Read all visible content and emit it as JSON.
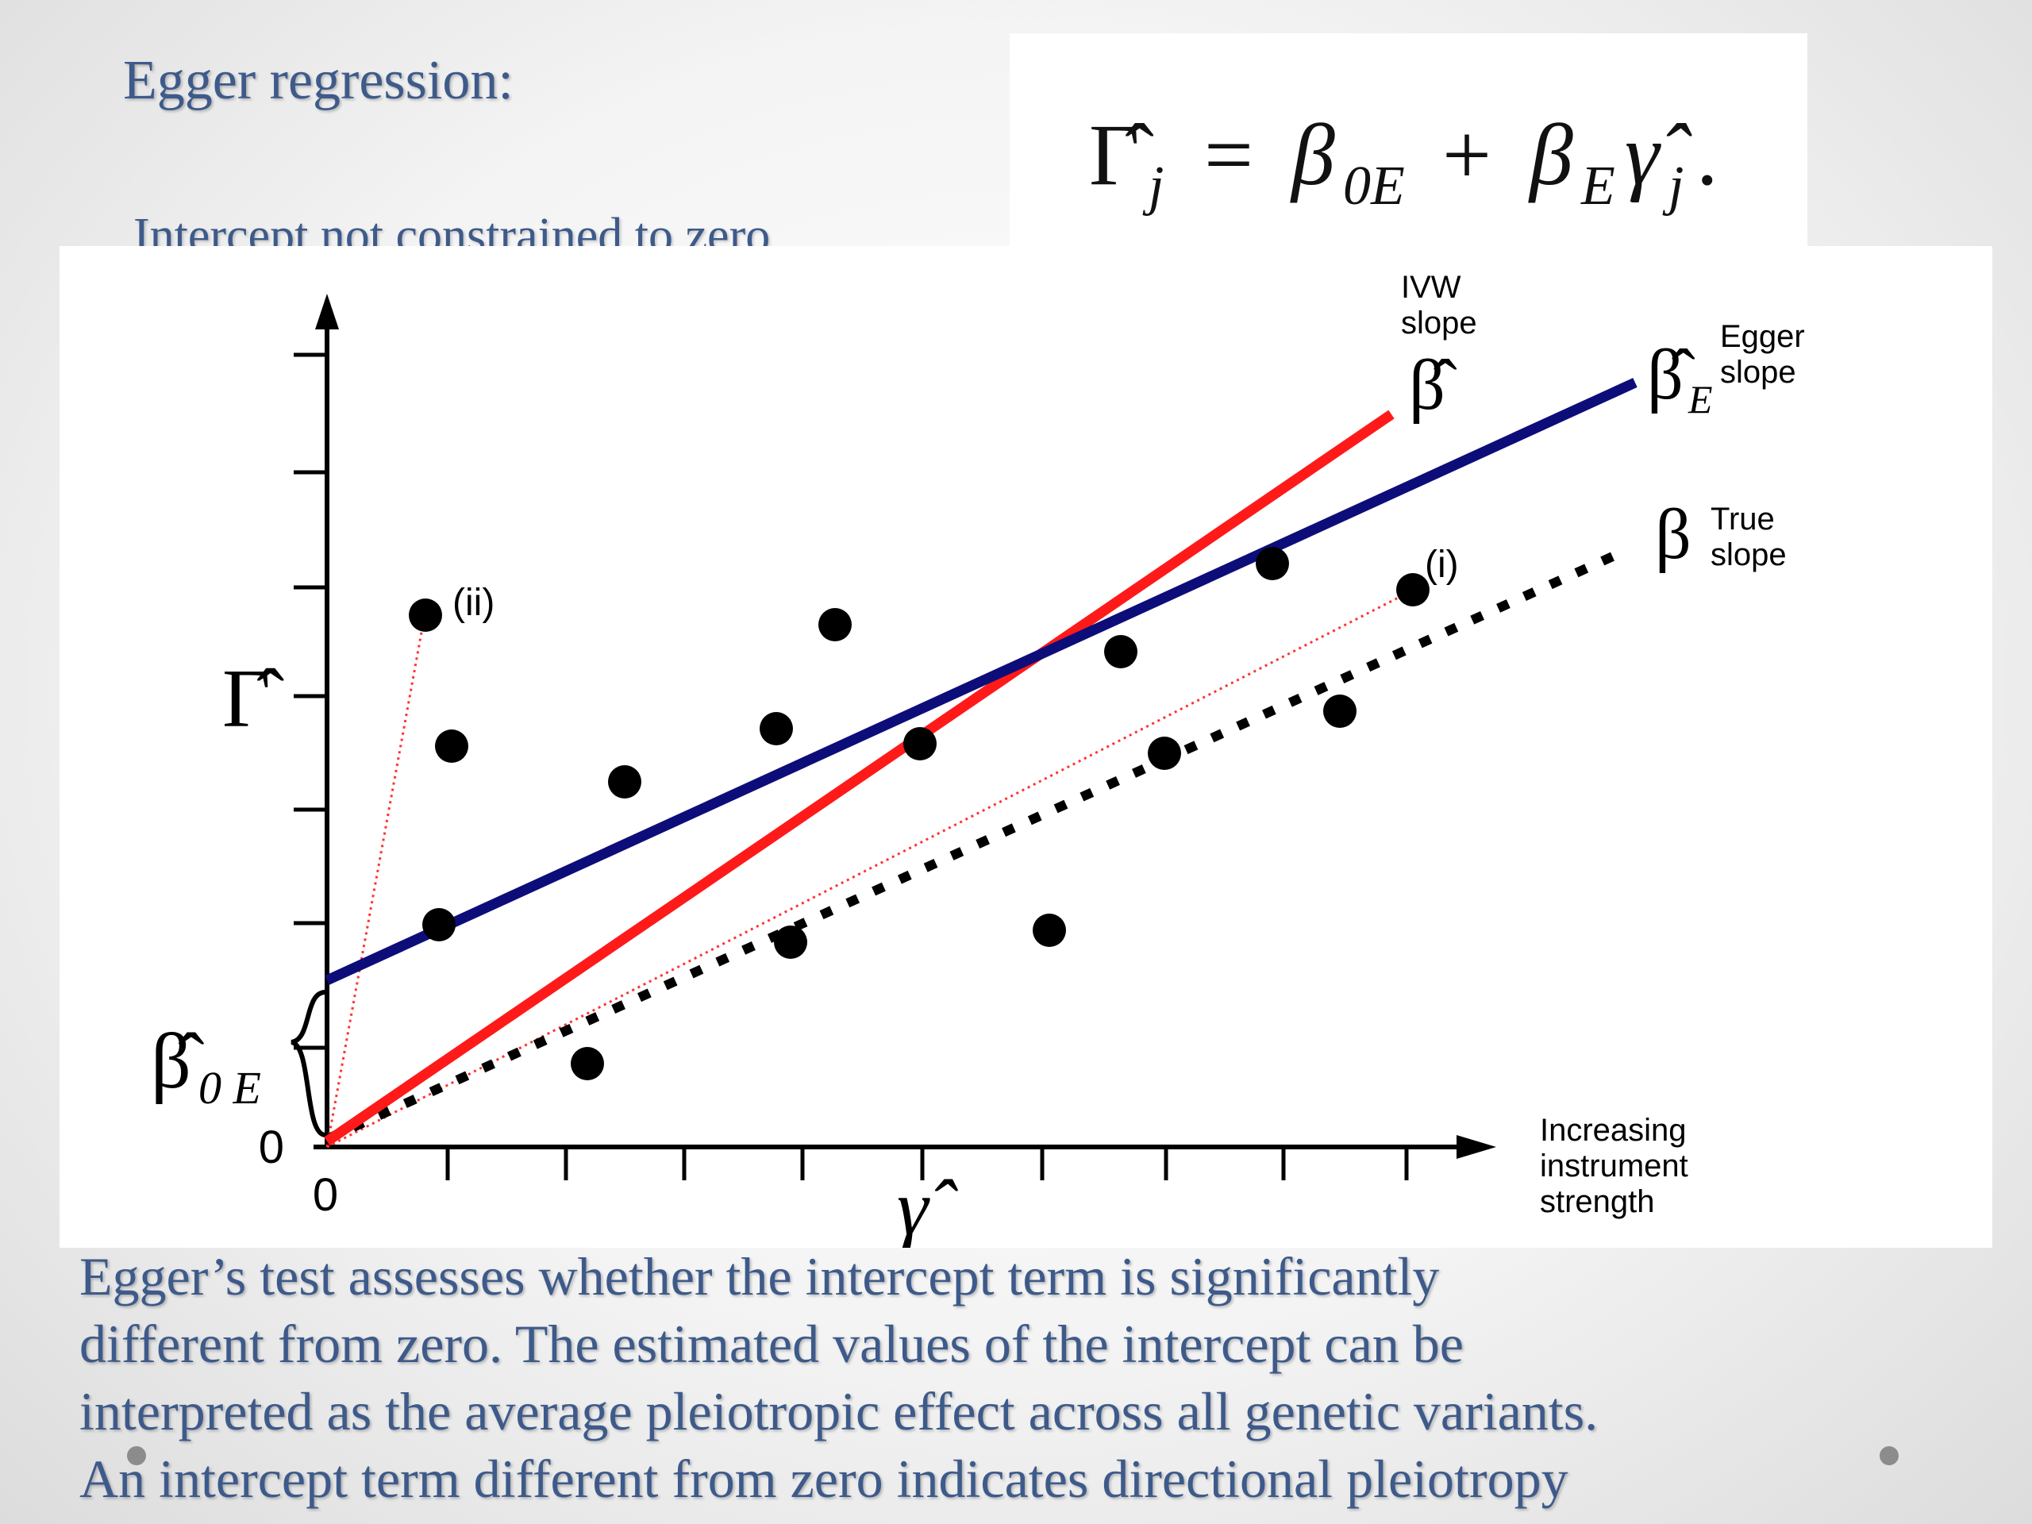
{
  "slide": {
    "title": "Egger regression:",
    "subtitle": "Intercept not constrained to zero",
    "equation": {
      "lhs_base": "Γ̂",
      "lhs_sub": "j",
      "equals": "=",
      "beta0": "β",
      "beta0_sub": "0E",
      "plus": "+",
      "beta": "β",
      "beta_sub": "E",
      "gamma": "γ̂",
      "gamma_sub": "j",
      "end": "."
    },
    "body_lines": [
      "Egger’s test assesses whether the intercept term is significantly",
      "different from zero. The estimated values of the intercept can be",
      "interpreted as the average pleiotropic effect across all genetic variants.",
      "An intercept term different from zero indicates directional pleiotropy"
    ]
  },
  "figure": {
    "x_axis_symbol": "γ̂",
    "y_axis_symbol": "Γ̂",
    "x_origin_label": "0",
    "y_origin_label": "0",
    "x_axis_caption": [
      "Increasing",
      "instrument",
      "strength"
    ],
    "intercept_symbol": "β̂",
    "intercept_sub": "0 E",
    "ivw_label": [
      "IVW",
      "slope"
    ],
    "ivw_symbol": "β̂",
    "egger_label": [
      "Egger",
      "slope"
    ],
    "egger_symbol": "β̂",
    "egger_sub": "E",
    "true_label": [
      "True",
      "slope"
    ],
    "true_symbol": "β",
    "point_i_label": "(i)",
    "point_ii_label": "(ii)",
    "colors": {
      "ivw": "#ff1a1a",
      "egger": "#0d0d7a",
      "true": "#000000",
      "text_blue": "#3d5a8a"
    }
  }
}
